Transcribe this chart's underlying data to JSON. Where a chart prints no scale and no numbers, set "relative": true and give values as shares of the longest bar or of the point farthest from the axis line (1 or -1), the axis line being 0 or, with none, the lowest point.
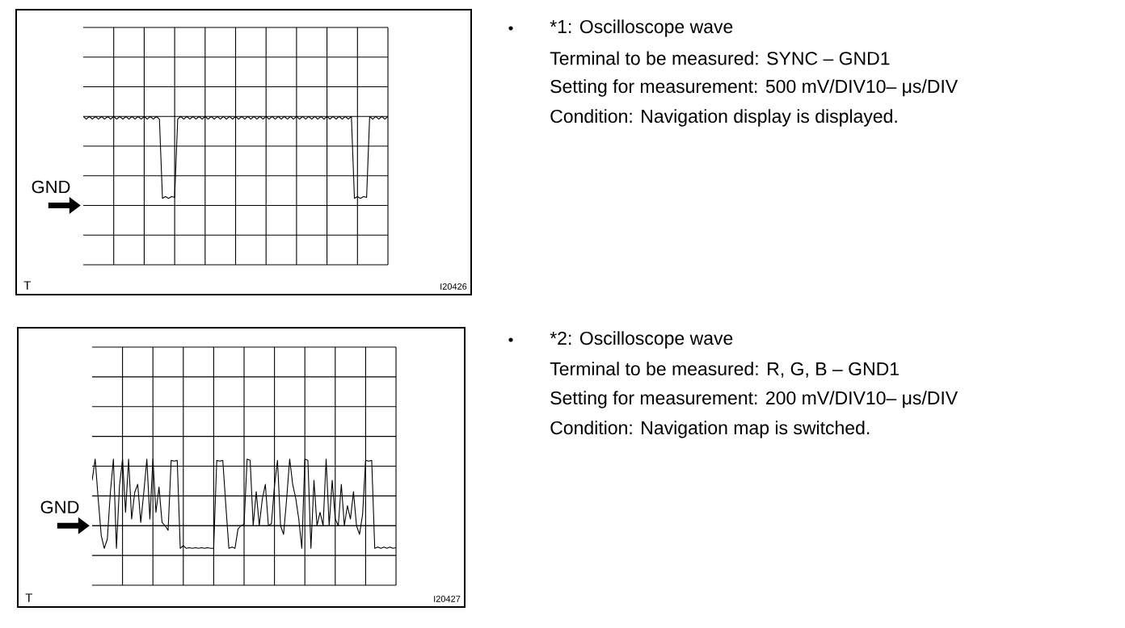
{
  "chart_data": [
    {
      "type": "line",
      "annotations": [
        "*1: Oscilloscope wave",
        "Terminal to be measured: SYNC – GND1",
        "Setting for measurement: 500 mV/DIV10– μs/DIV",
        "Condition: Navigation display is displayed.",
        "GND",
        "I20426",
        "T"
      ],
      "relative": true,
      "grid": true,
      "color": "#000000",
      "categories": [
        null,
        null,
        null,
        null,
        null,
        null,
        null,
        null,
        null,
        null,
        null,
        null,
        null,
        null,
        null,
        null,
        null,
        null,
        null,
        null,
        null,
        null,
        null,
        null,
        null,
        null,
        null,
        null,
        null,
        null,
        null,
        null,
        null,
        null,
        null,
        null,
        null,
        null,
        null,
        null,
        null,
        null,
        null,
        null,
        null,
        null,
        null,
        null,
        null,
        null,
        null,
        null,
        null,
        null,
        null,
        null,
        null,
        null,
        null,
        null,
        null,
        null,
        null,
        null,
        null,
        null,
        null,
        null,
        null,
        null,
        null,
        null,
        null,
        null,
        null,
        null,
        null,
        null,
        null,
        null,
        null,
        null,
        null,
        null,
        null,
        null,
        null,
        null,
        null,
        null,
        null,
        null,
        null,
        null,
        null,
        null,
        null,
        null,
        null,
        null,
        null
      ],
      "values": [
        1,
        0.97,
        1,
        0.97,
        1,
        0.97,
        1,
        0.97,
        1,
        0.97,
        1,
        0.97,
        1,
        0.97,
        1,
        0.97,
        1,
        0.97,
        1,
        0.97,
        1,
        0.97,
        1,
        0.97,
        1,
        0.97,
        0.08,
        0.1,
        0.08,
        0.1,
        0.09,
        0.97,
        1,
        0.97,
        1,
        0.97,
        1,
        0.97,
        1,
        0.97,
        1,
        0.97,
        1,
        0.97,
        1,
        0.97,
        1,
        0.97,
        1,
        0.97,
        1,
        0.97,
        1,
        0.97,
        1,
        0.97,
        1,
        0.97,
        1,
        0.97,
        1,
        0.97,
        1,
        0.97,
        1,
        0.97,
        1,
        0.97,
        1,
        0.97,
        1,
        0.97,
        1,
        0.97,
        1,
        0.97,
        1,
        0.97,
        1,
        0.97,
        1,
        0.97,
        1,
        0.97,
        1,
        0.97,
        1,
        0.97,
        1,
        0.08,
        0.1,
        0.08,
        0.1,
        0.09,
        1,
        0.97,
        1,
        0.97,
        1,
        0.97,
        1
      ]
    },
    {
      "type": "line",
      "annotations": [
        "*2: Oscilloscope wave",
        "Terminal to be measured: R, G, B – GND1",
        "Setting for measurement: 200 mV/DIV10– μs/DIV",
        "Condition: Navigation map is switched.",
        "GND",
        "I20427",
        "T"
      ],
      "relative": true,
      "grid": true,
      "color": "#000000",
      "categories": [
        null,
        null,
        null,
        null,
        null,
        null,
        null,
        null,
        null,
        null,
        null,
        null,
        null,
        null,
        null,
        null,
        null,
        null,
        null,
        null,
        null,
        null,
        null,
        null,
        null,
        null,
        null,
        null,
        null,
        null,
        null,
        null,
        null,
        null,
        null,
        null,
        null,
        null,
        null,
        null,
        null,
        null,
        null,
        null,
        null,
        null,
        null,
        null,
        null,
        null,
        null,
        null,
        null,
        null,
        null,
        null,
        null,
        null,
        null,
        null,
        null,
        null,
        null,
        null,
        null,
        null,
        null,
        null,
        null,
        null,
        null,
        null,
        null,
        null,
        null,
        null,
        null,
        null,
        null,
        null,
        null,
        null,
        null,
        null,
        null,
        null,
        null,
        null,
        null,
        null,
        null,
        null,
        null,
        null,
        null,
        null,
        null,
        null,
        null,
        null,
        null
      ],
      "values": [
        0.68,
        1,
        0.4,
        -0.15,
        -0.34,
        -0.2,
        0.5,
        1,
        -0.34,
        0.6,
        1,
        0.2,
        1,
        0.1,
        0.5,
        0.62,
        0.05,
        0.5,
        1,
        0.1,
        1,
        0.2,
        0.58,
        0.05,
        0,
        -0.07,
        0.98,
        0.97,
        0.98,
        -0.34,
        -0.3,
        -0.34,
        -0.33,
        -0.34,
        -0.33,
        -0.34,
        -0.33,
        -0.34,
        -0.33,
        -0.34,
        -0.34,
        0.98,
        0.97,
        0.98,
        0.3,
        -0.34,
        -0.32,
        -0.34,
        -0.05,
        0,
        0.02,
        1,
        0.98,
        0,
        0.51,
        0,
        0.4,
        0.62,
        0,
        0.03,
        0.6,
        0.98,
        0,
        -0.13,
        0.4,
        1,
        0.62,
        0.41,
        0.1,
        -0.34,
        1,
        0.98,
        -0.34,
        0.68,
        0,
        0.2,
        0,
        1,
        0,
        0.68,
        0.1,
        0,
        0.62,
        0,
        0.3,
        0.1,
        0.51,
        0,
        -0.13,
        0.17,
        0.98,
        0.97,
        0.98,
        -0.34,
        -0.32,
        -0.34,
        -0.32,
        -0.34,
        -0.32,
        -0.34,
        -0.33
      ]
    }
  ]
}
